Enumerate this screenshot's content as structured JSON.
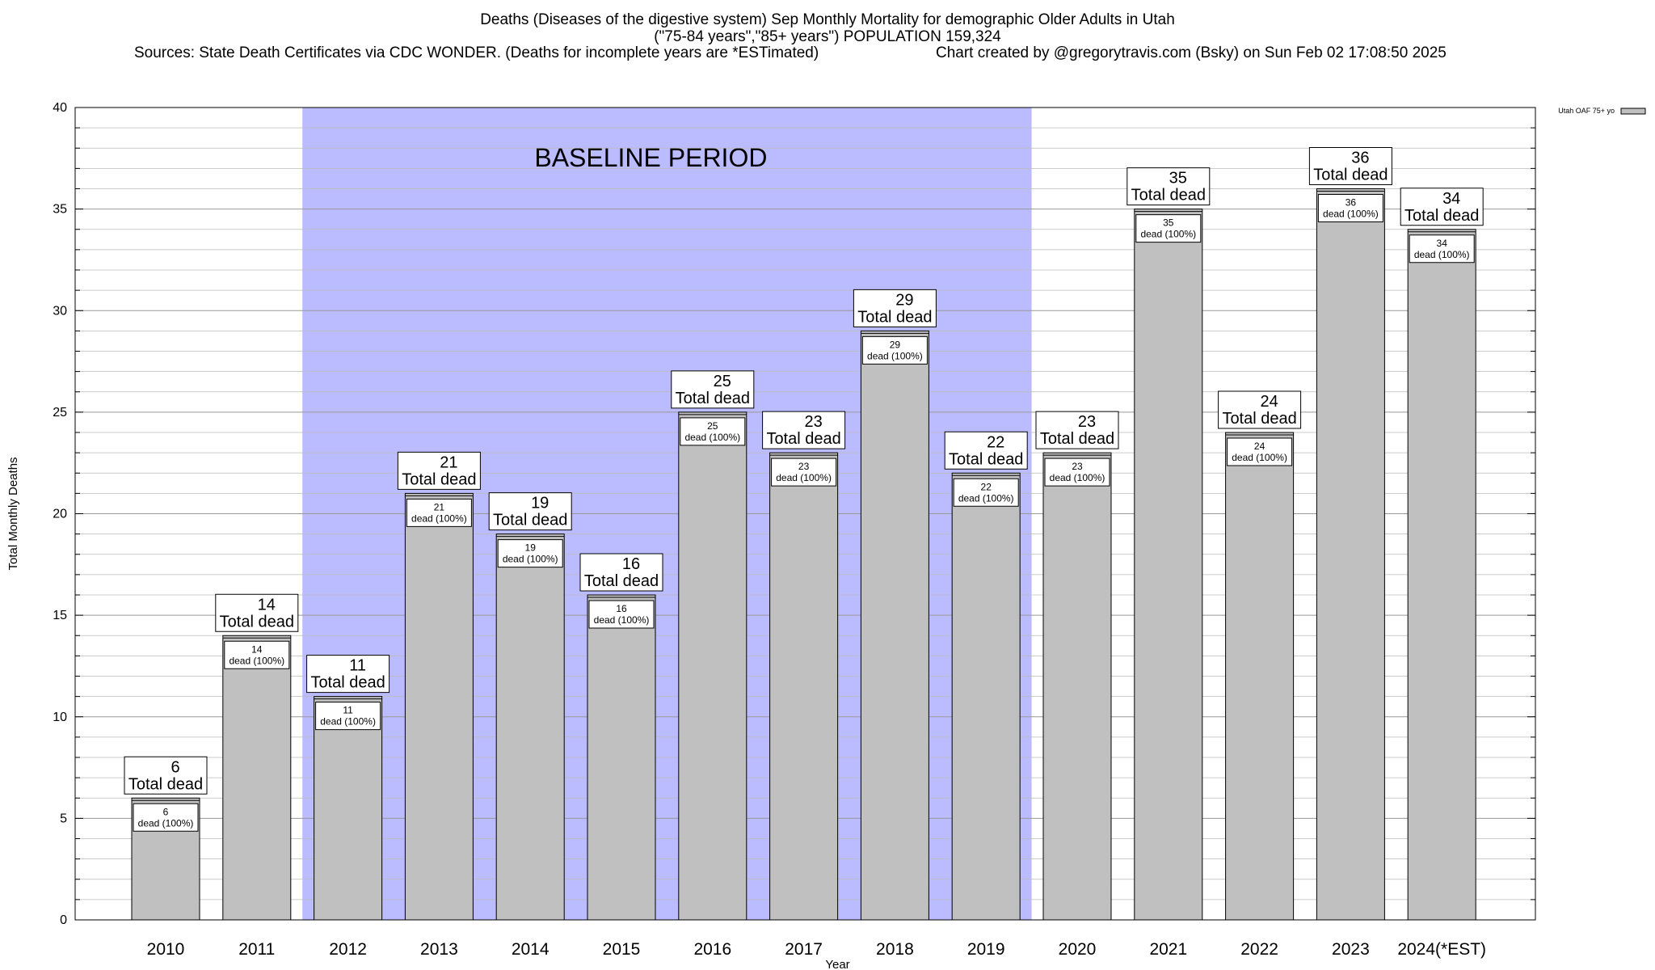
{
  "header": {
    "title_line1": "Deaths (Diseases of the digestive system) Sep Monthly Mortality for demographic Older Adults in Utah",
    "title_line2": "(\"75-84 years\",\"85+ years\") POPULATION 159,324",
    "sources": "Sources: State Death Certificates via CDC WONDER. (Deaths for incomplete years are *ESTimated)",
    "credit": "Chart created by @gregorytravis.com (Bsky) on Sun Feb 02 17:08:50 2025"
  },
  "chart_data": {
    "type": "bar",
    "categories": [
      "2010",
      "2011",
      "2012",
      "2013",
      "2014",
      "2015",
      "2016",
      "2017",
      "2018",
      "2019",
      "2020",
      "2021",
      "2022",
      "2023",
      "2024(*EST)"
    ],
    "series": [
      {
        "name": "Utah OAF 75+ yo",
        "values": [
          6,
          14,
          11,
          21,
          19,
          16,
          25,
          23,
          29,
          22,
          23,
          35,
          24,
          36,
          34
        ]
      }
    ],
    "xlabel": "Year",
    "ylabel": "Total Monthly Deaths",
    "ylim": [
      0,
      40
    ],
    "yticks": [
      0,
      5,
      10,
      15,
      20,
      25,
      30,
      35,
      40
    ],
    "baseline": {
      "label": "BASELINE PERIOD",
      "from": "2012",
      "to": "2019"
    },
    "bar_label_line2": "Total dead",
    "bar_inner_label": "dead (100%)",
    "grid": true,
    "legend_position": "top-right",
    "colors": {
      "bar": "#c0c0c0",
      "baseline": "#bbbbff",
      "grid": "#bbbbbb"
    }
  }
}
